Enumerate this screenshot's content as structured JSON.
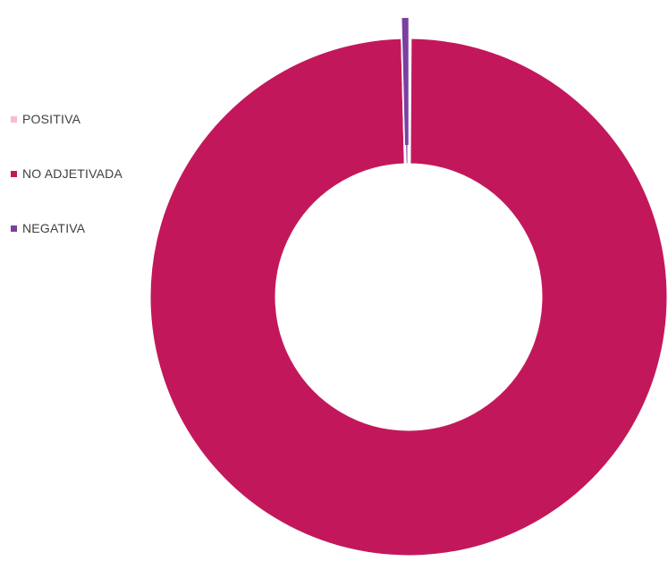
{
  "chart_data": {
    "type": "pie",
    "variant": "donut",
    "title": "",
    "legend_position": "left",
    "slices": [
      {
        "name": "POSITIVA",
        "value": 0.1,
        "color": "#F8BBD0"
      },
      {
        "name": "NO ADJETIVADA",
        "value": 99.5,
        "color": "#C2185B"
      },
      {
        "name": "NEGATIVA",
        "value": 0.4,
        "color": "#7B3FA0"
      }
    ]
  }
}
